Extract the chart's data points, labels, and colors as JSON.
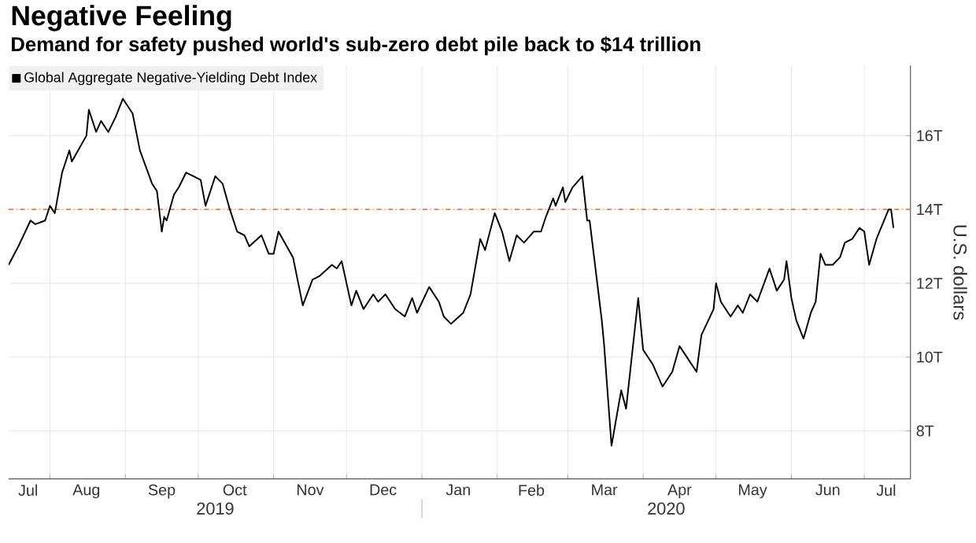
{
  "chart_data": {
    "type": "line",
    "title": "Negative Feeling",
    "subtitle": "Demand for safety pushed world's sub-zero debt pile back to $14 trillion",
    "ylabel": "U.S. dollars",
    "series": [
      {
        "name": "Global Aggregate Negative-Yielding Debt Index",
        "color": "#000000",
        "x": [
          "2019-07-15",
          "2019-07-19",
          "2019-07-24",
          "2019-07-26",
          "2019-07-30",
          "2019-08-01",
          "2019-08-03",
          "2019-08-06",
          "2019-08-09",
          "2019-08-10",
          "2019-08-16",
          "2019-08-17",
          "2019-08-20",
          "2019-08-22",
          "2019-08-25",
          "2019-08-28",
          "2019-08-31",
          "2019-09-04",
          "2019-09-07",
          "2019-09-12",
          "2019-09-14",
          "2019-09-16",
          "2019-09-17",
          "2019-09-18",
          "2019-09-21",
          "2019-09-23",
          "2019-09-26",
          "2019-09-29",
          "2019-10-02",
          "2019-10-04",
          "2019-10-05",
          "2019-10-08",
          "2019-10-11",
          "2019-10-14",
          "2019-10-17",
          "2019-10-20",
          "2019-10-22",
          "2019-10-27",
          "2019-10-30",
          "2019-11-01",
          "2019-11-03",
          "2019-11-09",
          "2019-11-13",
          "2019-11-17",
          "2019-11-20",
          "2019-11-25",
          "2019-11-27",
          "2019-11-29",
          "2019-12-03",
          "2019-12-05",
          "2019-12-08",
          "2019-12-12",
          "2019-12-14",
          "2019-12-17",
          "2019-12-21",
          "2019-12-25",
          "2019-12-28",
          "2019-12-30",
          "2020-01-04",
          "2020-01-08",
          "2020-01-10",
          "2020-01-13",
          "2020-01-18",
          "2020-01-21",
          "2020-01-25",
          "2020-01-27",
          "2020-01-31",
          "2020-02-03",
          "2020-02-06",
          "2020-02-09",
          "2020-02-12",
          "2020-02-16",
          "2020-02-19",
          "2020-02-21",
          "2020-02-24",
          "2020-02-25",
          "2020-02-28",
          "2020-02-29",
          "2020-03-03",
          "2020-03-07",
          "2020-03-09",
          "2020-03-10",
          "2020-03-15",
          "2020-03-16",
          "2020-03-19",
          "2020-03-23",
          "2020-03-25",
          "2020-03-30",
          "2020-04-01",
          "2020-04-03",
          "2020-04-05",
          "2020-04-09",
          "2020-04-13",
          "2020-04-16",
          "2020-04-18",
          "2020-04-23",
          "2020-04-25",
          "2020-04-30",
          "2020-05-01",
          "2020-05-03",
          "2020-05-07",
          "2020-05-10",
          "2020-05-12",
          "2020-05-15",
          "2020-05-18",
          "2020-05-23",
          "2020-05-26",
          "2020-05-29",
          "2020-05-30",
          "2020-06-01",
          "2020-06-03",
          "2020-06-06",
          "2020-06-09",
          "2020-06-11",
          "2020-06-13",
          "2020-06-15",
          "2020-06-18",
          "2020-06-21",
          "2020-06-23",
          "2020-06-26",
          "2020-06-29",
          "2020-07-01",
          "2020-07-03",
          "2020-07-06",
          "2020-07-11",
          "2020-07-12",
          "2020-07-13"
        ],
        "values": [
          12.5,
          13.0,
          13.7,
          13.6,
          13.7,
          14.1,
          13.9,
          15.0,
          15.6,
          15.3,
          16.0,
          16.7,
          16.1,
          16.4,
          16.1,
          16.5,
          17.0,
          16.6,
          15.6,
          14.7,
          14.5,
          13.4,
          13.8,
          13.7,
          14.4,
          14.6,
          15.0,
          14.9,
          14.8,
          14.1,
          14.3,
          14.9,
          14.7,
          14.0,
          13.4,
          13.3,
          13.0,
          13.3,
          12.8,
          12.8,
          13.4,
          12.7,
          11.4,
          12.1,
          12.2,
          12.5,
          12.4,
          12.6,
          11.4,
          11.8,
          11.3,
          11.7,
          11.5,
          11.7,
          11.3,
          11.1,
          11.6,
          11.2,
          11.9,
          11.5,
          11.1,
          10.9,
          11.2,
          11.7,
          13.2,
          12.9,
          13.9,
          13.4,
          12.6,
          13.3,
          13.1,
          13.4,
          13.4,
          13.8,
          14.3,
          14.1,
          14.6,
          14.2,
          14.6,
          14.9,
          13.7,
          13.7,
          11.0,
          10.3,
          7.6,
          9.1,
          8.6,
          11.6,
          10.2,
          10.0,
          9.8,
          9.2,
          9.6,
          10.3,
          10.1,
          9.6,
          10.6,
          11.3,
          12.0,
          11.5,
          11.1,
          11.4,
          11.2,
          11.7,
          11.5,
          12.4,
          11.8,
          12.1,
          12.6,
          11.6,
          11.0,
          10.5,
          11.2,
          11.5,
          12.8,
          12.5,
          12.5,
          12.7,
          13.1,
          13.2,
          13.5,
          13.4,
          12.5,
          13.2,
          14.0,
          14.0,
          13.5
        ]
      }
    ],
    "xlim": [
      "2019-07-15",
      "2020-07-20"
    ],
    "xticks": [
      {
        "value": "2019-07-23",
        "label": "Jul"
      },
      {
        "value": "2019-08-01",
        "label": null
      },
      {
        "value": "2019-08-16",
        "label": "Aug"
      },
      {
        "value": "2019-09-01",
        "label": null
      },
      {
        "value": "2019-09-16",
        "label": "Sep"
      },
      {
        "value": "2019-10-01",
        "label": null
      },
      {
        "value": "2019-10-16",
        "label": "Oct"
      },
      {
        "value": "2019-11-01",
        "label": null
      },
      {
        "value": "2019-11-16",
        "label": "Nov"
      },
      {
        "value": "2019-12-01",
        "label": null
      },
      {
        "value": "2019-12-16",
        "label": "Dec"
      },
      {
        "value": "2020-01-01",
        "label": null
      },
      {
        "value": "2020-01-16",
        "label": "Jan"
      },
      {
        "value": "2020-02-01",
        "label": null
      },
      {
        "value": "2020-02-15",
        "label": "Feb"
      },
      {
        "value": "2020-03-01",
        "label": null
      },
      {
        "value": "2020-03-16",
        "label": "Mar"
      },
      {
        "value": "2020-04-01",
        "label": null
      },
      {
        "value": "2020-04-16",
        "label": "Apr"
      },
      {
        "value": "2020-05-01",
        "label": null
      },
      {
        "value": "2020-05-16",
        "label": "May"
      },
      {
        "value": "2020-06-01",
        "label": null
      },
      {
        "value": "2020-06-16",
        "label": "Jun"
      },
      {
        "value": "2020-07-01",
        "label": null
      },
      {
        "value": "2020-07-10",
        "label": "Jul"
      }
    ],
    "ylim": [
      6.7,
      17.9
    ],
    "yticks": [
      {
        "value": 8,
        "label": "8T"
      },
      {
        "value": 10,
        "label": "10T"
      },
      {
        "value": 12,
        "label": "12T"
      },
      {
        "value": 14,
        "label": "14T"
      },
      {
        "value": 16,
        "label": "16T"
      }
    ],
    "ref_lines": [
      {
        "axis": "y",
        "value": 14,
        "color": "#f07f3c",
        "line_style": "dashdotted"
      }
    ],
    "annotations": [
      "2019",
      "2020"
    ],
    "grid": true,
    "legend": "top left"
  }
}
